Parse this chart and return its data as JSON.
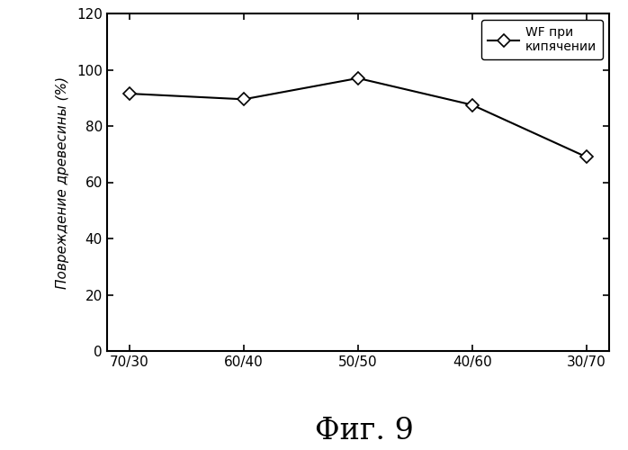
{
  "x_labels": [
    "70/30",
    "60/40",
    "50/50",
    "40/60",
    "30/70"
  ],
  "x_values": [
    0,
    1,
    2,
    3,
    4
  ],
  "y_values": [
    91.5,
    89.5,
    97.0,
    87.5,
    69.0
  ],
  "ylim": [
    0,
    120
  ],
  "yticks": [
    0,
    20,
    40,
    60,
    80,
    100,
    120
  ],
  "ylabel": "Повреждение древесины (%)",
  "title": "Фиг. 9",
  "legend_label": "WF при\nкипячении",
  "line_color": "#000000",
  "marker": "D",
  "marker_size": 7,
  "marker_facecolor": "#ffffff",
  "marker_edgecolor": "#000000",
  "background_color": "#ffffff",
  "figure_size": [
    6.98,
    5.0
  ],
  "dpi": 100
}
